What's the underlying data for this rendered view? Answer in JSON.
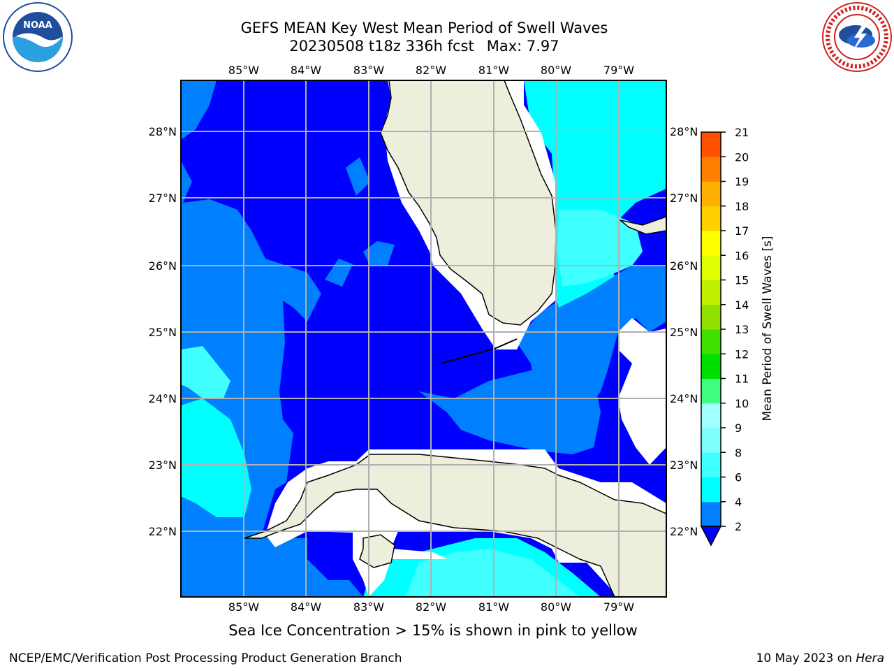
{
  "title": {
    "line1": "GEFS MEAN Key West Mean Period of Swell Waves",
    "line2": "20230508 t18z 336h fcst",
    "max": "Max: 7.97"
  },
  "logos": {
    "left": {
      "icon": "noaa-logo-icon",
      "text": "NOAA"
    },
    "right": {
      "icon": "nws-logo-icon",
      "text": "NATIONAL WEATHER SERVICE"
    }
  },
  "map": {
    "longitude_labels": [
      "85°W",
      "84°W",
      "83°W",
      "82°W",
      "81°W",
      "80°W",
      "79°W"
    ],
    "latitude_labels": [
      "28°N",
      "27°N",
      "26°N",
      "25°N",
      "24°N",
      "23°N",
      "22°N"
    ],
    "colors": {
      "deep_blue": "#0000ff",
      "mid_blue": "#0080ff",
      "cyan": "#00ffff",
      "light_cyan": "#40ffff",
      "land": "#eeeedd",
      "grid": "#b0b0b0"
    }
  },
  "colorbar": {
    "label": "Mean Period of Swell Waves [s]",
    "ticks": [
      "2",
      "4",
      "6",
      "8",
      "9",
      "10",
      "11",
      "12",
      "13",
      "14",
      "15",
      "16",
      "17",
      "18",
      "19",
      "20",
      "21"
    ],
    "colors": [
      "#0080ff",
      "#00ffff",
      "#40ffff",
      "#80ffff",
      "#a0ffff",
      "#40ff80",
      "#00e000",
      "#40e000",
      "#90e000",
      "#c0f000",
      "#e0ff00",
      "#ffff00",
      "#ffd000",
      "#ffb000",
      "#ff8000",
      "#ff5000",
      "#ff2000",
      "#ff0000"
    ],
    "extend_color": "#0000ff"
  },
  "note": "Sea Ice Concentration > 15% is shown in pink to yellow",
  "footer": {
    "left": "NCEP/EMC/Verification Post Processing Product Generation Branch",
    "date": "10 May 2023 on ",
    "host": "Hera"
  }
}
